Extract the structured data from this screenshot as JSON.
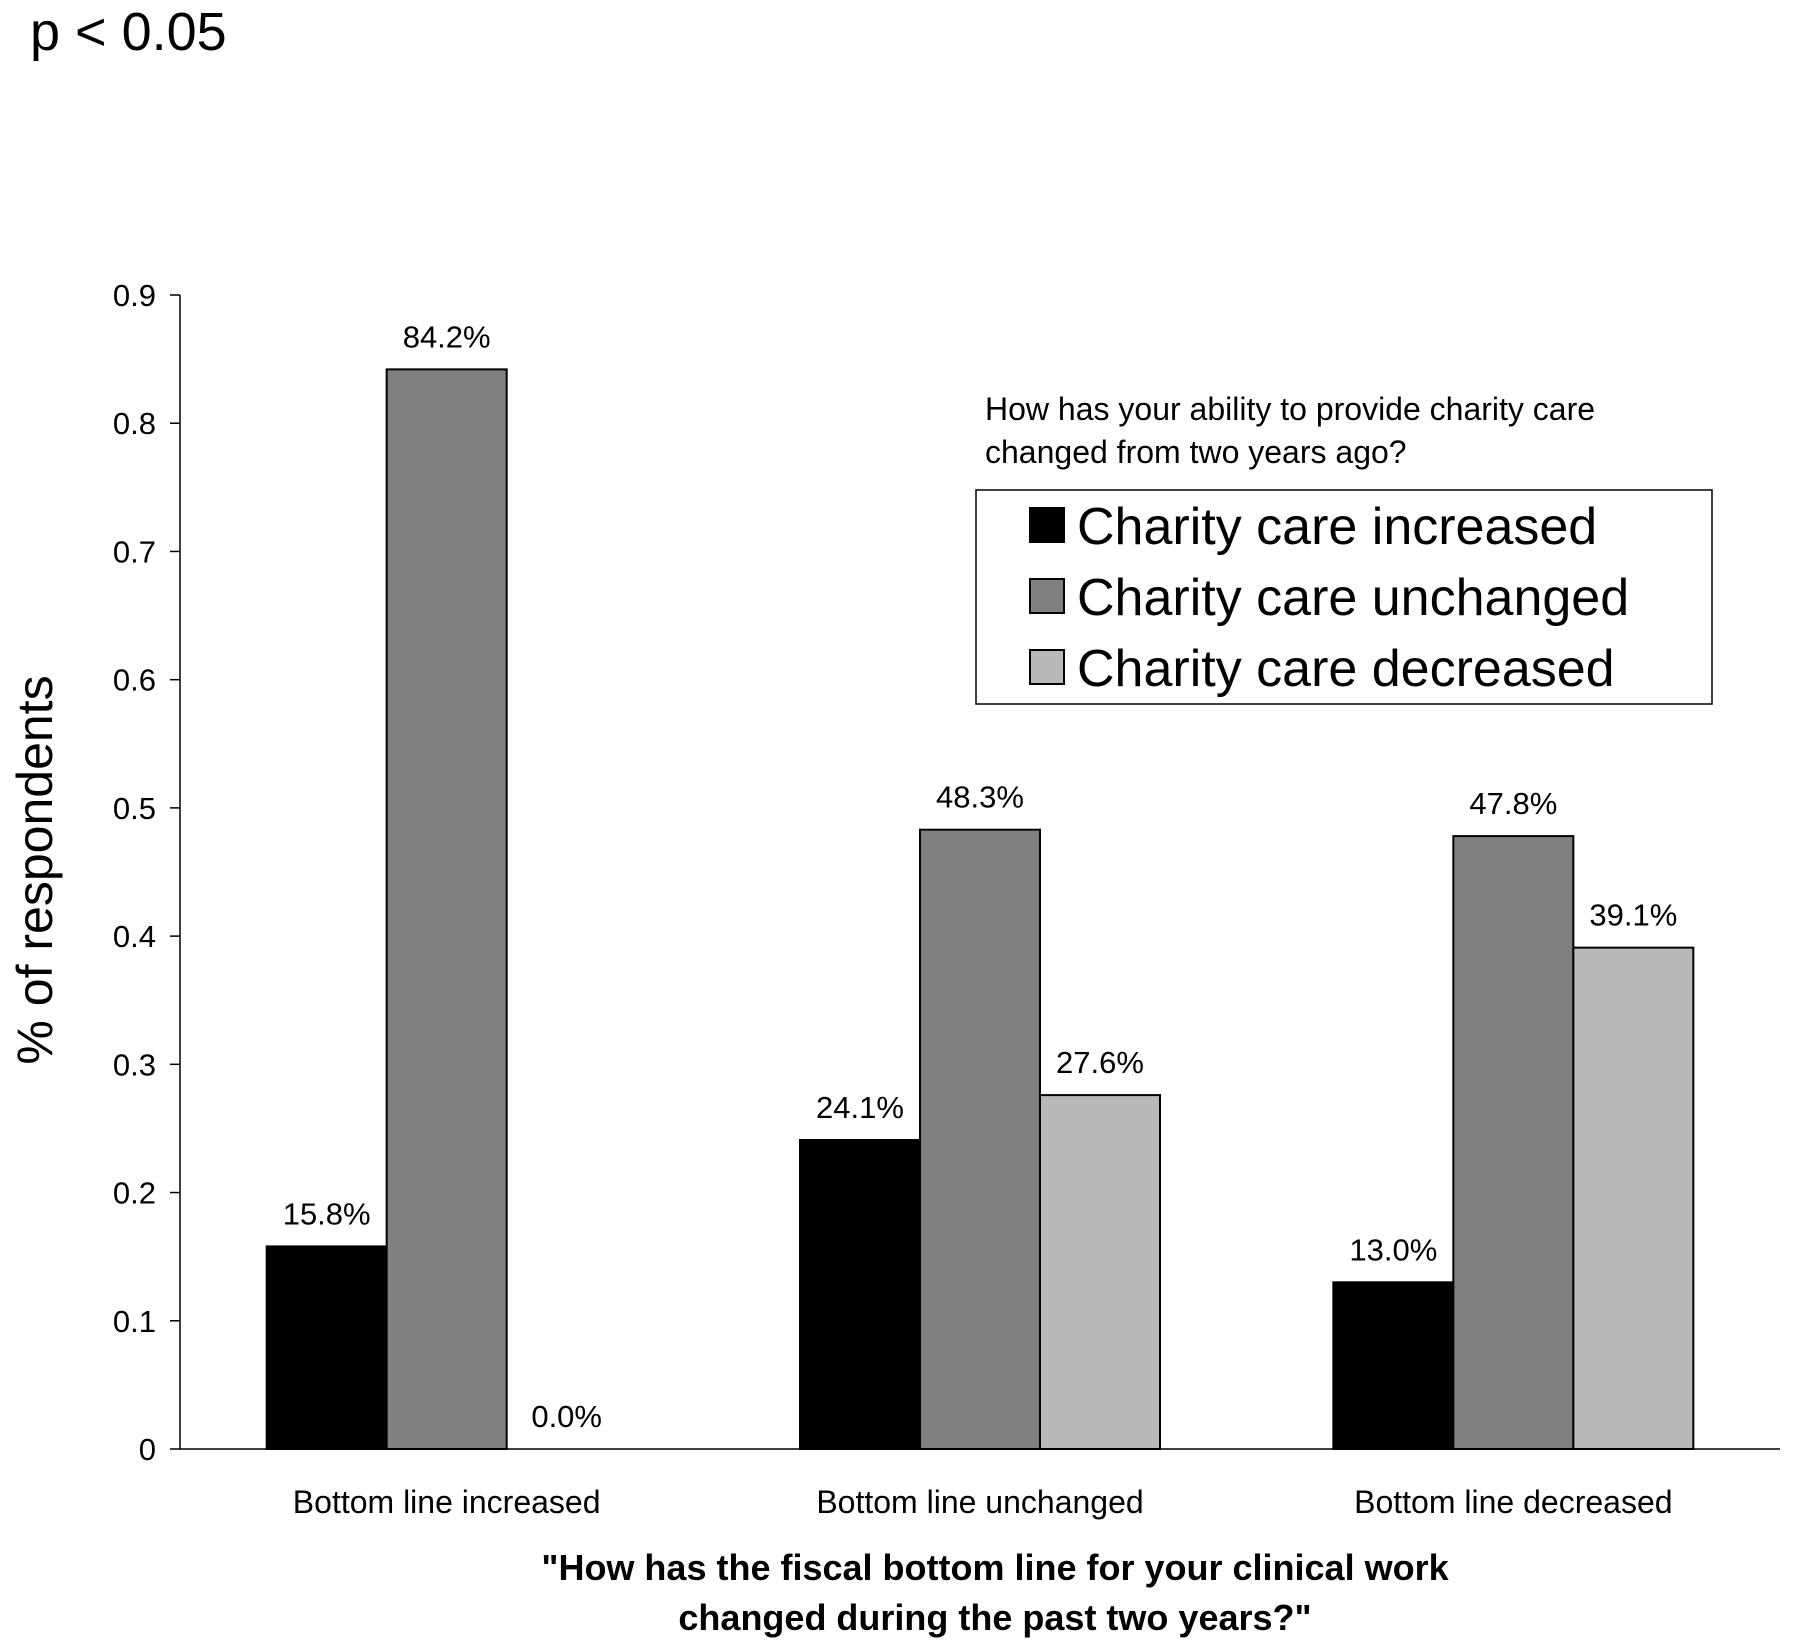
{
  "p_value_text": "p < 0.05",
  "chart_data": {
    "type": "bar",
    "categories": [
      "Bottom line increased",
      "Bottom line unchanged",
      "Bottom line decreased"
    ],
    "series": [
      {
        "name": "Charity care increased",
        "values": [
          0.158,
          0.241,
          0.13
        ],
        "labels": [
          "15.8%",
          "24.1%",
          "13.0%"
        ],
        "color": "#000000"
      },
      {
        "name": "Charity care unchanged",
        "values": [
          0.842,
          0.483,
          0.478
        ],
        "labels": [
          "84.2%",
          "48.3%",
          "47.8%"
        ],
        "color": "#808080"
      },
      {
        "name": "Charity care decreased",
        "values": [
          0.0,
          0.276,
          0.391
        ],
        "labels": [
          "0.0%",
          "27.6%",
          "39.1%"
        ],
        "color": "#b8b8b8"
      }
    ],
    "ylabel": "% of respondents",
    "xlabel_lines": [
      "\"How has the fiscal bottom line for your clinical work",
      "changed during the past two years?\""
    ],
    "ylim": [
      0,
      0.9
    ],
    "yticks": [
      "0",
      "0.1",
      "0.2",
      "0.3",
      "0.4",
      "0.5",
      "0.6",
      "0.7",
      "0.8",
      "0.9"
    ],
    "legend_title_lines": [
      "How has your ability to provide charity care",
      "changed from two years ago?"
    ],
    "legend_position": "top-right",
    "grid": false
  }
}
